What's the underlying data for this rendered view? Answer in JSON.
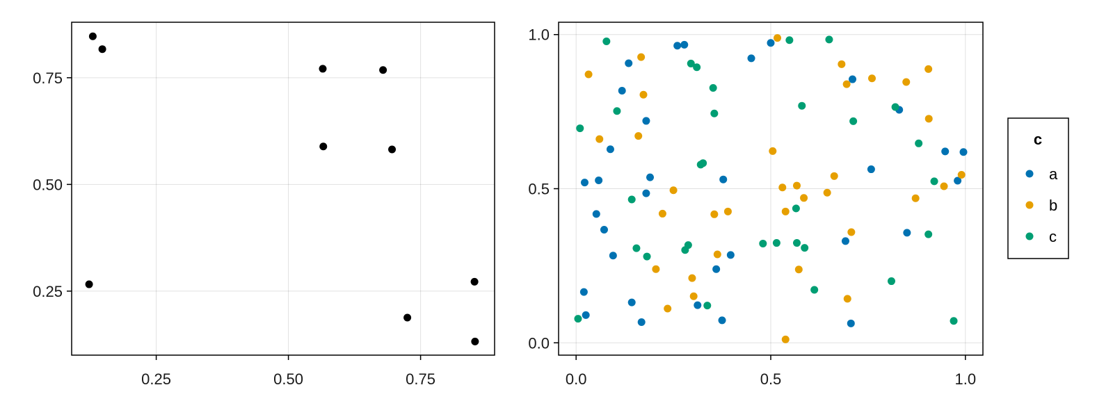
{
  "chart_data": [
    {
      "type": "scatter",
      "title": "",
      "xlabel": "",
      "ylabel": "",
      "xlim": [
        0.09,
        0.89
      ],
      "ylim": [
        0.1,
        0.88
      ],
      "xticks": [
        0.25,
        0.5,
        0.75
      ],
      "xtick_labels": [
        "0.25",
        "0.50",
        "0.75"
      ],
      "yticks": [
        0.25,
        0.5,
        0.75
      ],
      "ytick_labels": [
        "0.25",
        "0.50",
        "0.75"
      ],
      "grid": true,
      "marker_color": "#000000",
      "points": [
        {
          "x": 0.13,
          "y": 0.847
        },
        {
          "x": 0.148,
          "y": 0.817
        },
        {
          "x": 0.123,
          "y": 0.266
        },
        {
          "x": 0.565,
          "y": 0.771
        },
        {
          "x": 0.566,
          "y": 0.589
        },
        {
          "x": 0.679,
          "y": 0.768
        },
        {
          "x": 0.696,
          "y": 0.582
        },
        {
          "x": 0.725,
          "y": 0.188
        },
        {
          "x": 0.852,
          "y": 0.272
        },
        {
          "x": 0.853,
          "y": 0.132
        }
      ]
    },
    {
      "type": "scatter",
      "title": "",
      "xlabel": "",
      "ylabel": "",
      "xlim": [
        -0.045,
        1.045
      ],
      "ylim": [
        -0.04,
        1.04
      ],
      "xticks": [
        0.0,
        0.5,
        1.0
      ],
      "xtick_labels": [
        "0.0",
        "0.5",
        "1.0"
      ],
      "yticks": [
        0.0,
        0.5,
        1.0
      ],
      "ytick_labels": [
        "0.0",
        "0.5",
        "1.0"
      ],
      "grid": true,
      "legend": {
        "title": "c",
        "position": "right"
      },
      "series": [
        {
          "name": "a",
          "color": "#0072B2",
          "points": [
            {
              "x": 0.02,
              "y": 0.165
            },
            {
              "x": 0.025,
              "y": 0.09
            },
            {
              "x": 0.022,
              "y": 0.52
            },
            {
              "x": 0.052,
              "y": 0.418
            },
            {
              "x": 0.058,
              "y": 0.527
            },
            {
              "x": 0.072,
              "y": 0.367
            },
            {
              "x": 0.088,
              "y": 0.628
            },
            {
              "x": 0.095,
              "y": 0.283
            },
            {
              "x": 0.118,
              "y": 0.818
            },
            {
              "x": 0.135,
              "y": 0.907
            },
            {
              "x": 0.143,
              "y": 0.131
            },
            {
              "x": 0.168,
              "y": 0.067
            },
            {
              "x": 0.18,
              "y": 0.72
            },
            {
              "x": 0.18,
              "y": 0.485
            },
            {
              "x": 0.19,
              "y": 0.537
            },
            {
              "x": 0.26,
              "y": 0.964
            },
            {
              "x": 0.278,
              "y": 0.967
            },
            {
              "x": 0.312,
              "y": 0.122
            },
            {
              "x": 0.36,
              "y": 0.239
            },
            {
              "x": 0.375,
              "y": 0.073
            },
            {
              "x": 0.378,
              "y": 0.53
            },
            {
              "x": 0.397,
              "y": 0.285
            },
            {
              "x": 0.45,
              "y": 0.923
            },
            {
              "x": 0.5,
              "y": 0.973
            },
            {
              "x": 0.692,
              "y": 0.33
            },
            {
              "x": 0.706,
              "y": 0.063
            },
            {
              "x": 0.71,
              "y": 0.855
            },
            {
              "x": 0.758,
              "y": 0.563
            },
            {
              "x": 0.83,
              "y": 0.756
            },
            {
              "x": 0.85,
              "y": 0.357
            },
            {
              "x": 0.948,
              "y": 0.621
            },
            {
              "x": 0.98,
              "y": 0.526
            },
            {
              "x": 0.995,
              "y": 0.619
            }
          ]
        },
        {
          "name": "b",
          "color": "#E69F00",
          "points": [
            {
              "x": 0.032,
              "y": 0.871
            },
            {
              "x": 0.06,
              "y": 0.661
            },
            {
              "x": 0.16,
              "y": 0.671
            },
            {
              "x": 0.167,
              "y": 0.927
            },
            {
              "x": 0.173,
              "y": 0.805
            },
            {
              "x": 0.205,
              "y": 0.239
            },
            {
              "x": 0.222,
              "y": 0.419
            },
            {
              "x": 0.235,
              "y": 0.111
            },
            {
              "x": 0.25,
              "y": 0.495
            },
            {
              "x": 0.298,
              "y": 0.21
            },
            {
              "x": 0.302,
              "y": 0.151
            },
            {
              "x": 0.355,
              "y": 0.417
            },
            {
              "x": 0.363,
              "y": 0.287
            },
            {
              "x": 0.39,
              "y": 0.426
            },
            {
              "x": 0.505,
              "y": 0.622
            },
            {
              "x": 0.517,
              "y": 0.989
            },
            {
              "x": 0.53,
              "y": 0.504
            },
            {
              "x": 0.538,
              "y": 0.426
            },
            {
              "x": 0.538,
              "y": 0.011
            },
            {
              "x": 0.567,
              "y": 0.51
            },
            {
              "x": 0.572,
              "y": 0.238
            },
            {
              "x": 0.585,
              "y": 0.47
            },
            {
              "x": 0.645,
              "y": 0.487
            },
            {
              "x": 0.663,
              "y": 0.541
            },
            {
              "x": 0.682,
              "y": 0.904
            },
            {
              "x": 0.695,
              "y": 0.839
            },
            {
              "x": 0.697,
              "y": 0.143
            },
            {
              "x": 0.707,
              "y": 0.359
            },
            {
              "x": 0.76,
              "y": 0.858
            },
            {
              "x": 0.848,
              "y": 0.846
            },
            {
              "x": 0.872,
              "y": 0.469
            },
            {
              "x": 0.905,
              "y": 0.888
            },
            {
              "x": 0.906,
              "y": 0.727
            },
            {
              "x": 0.945,
              "y": 0.508
            },
            {
              "x": 0.99,
              "y": 0.545
            }
          ]
        },
        {
          "name": "c",
          "color": "#009E73",
          "points": [
            {
              "x": 0.005,
              "y": 0.078
            },
            {
              "x": 0.01,
              "y": 0.696
            },
            {
              "x": 0.078,
              "y": 0.978
            },
            {
              "x": 0.105,
              "y": 0.752
            },
            {
              "x": 0.143,
              "y": 0.465
            },
            {
              "x": 0.155,
              "y": 0.307
            },
            {
              "x": 0.182,
              "y": 0.28
            },
            {
              "x": 0.28,
              "y": 0.301
            },
            {
              "x": 0.288,
              "y": 0.317
            },
            {
              "x": 0.295,
              "y": 0.906
            },
            {
              "x": 0.31,
              "y": 0.894
            },
            {
              "x": 0.32,
              "y": 0.578
            },
            {
              "x": 0.326,
              "y": 0.583
            },
            {
              "x": 0.337,
              "y": 0.121
            },
            {
              "x": 0.352,
              "y": 0.827
            },
            {
              "x": 0.355,
              "y": 0.744
            },
            {
              "x": 0.48,
              "y": 0.322
            },
            {
              "x": 0.515,
              "y": 0.324
            },
            {
              "x": 0.548,
              "y": 0.982
            },
            {
              "x": 0.565,
              "y": 0.436
            },
            {
              "x": 0.567,
              "y": 0.324
            },
            {
              "x": 0.58,
              "y": 0.769
            },
            {
              "x": 0.587,
              "y": 0.308
            },
            {
              "x": 0.612,
              "y": 0.172
            },
            {
              "x": 0.65,
              "y": 0.984
            },
            {
              "x": 0.712,
              "y": 0.719
            },
            {
              "x": 0.81,
              "y": 0.2
            },
            {
              "x": 0.82,
              "y": 0.765
            },
            {
              "x": 0.88,
              "y": 0.647
            },
            {
              "x": 0.905,
              "y": 0.352
            },
            {
              "x": 0.92,
              "y": 0.524
            },
            {
              "x": 0.97,
              "y": 0.071
            }
          ]
        }
      ]
    }
  ]
}
